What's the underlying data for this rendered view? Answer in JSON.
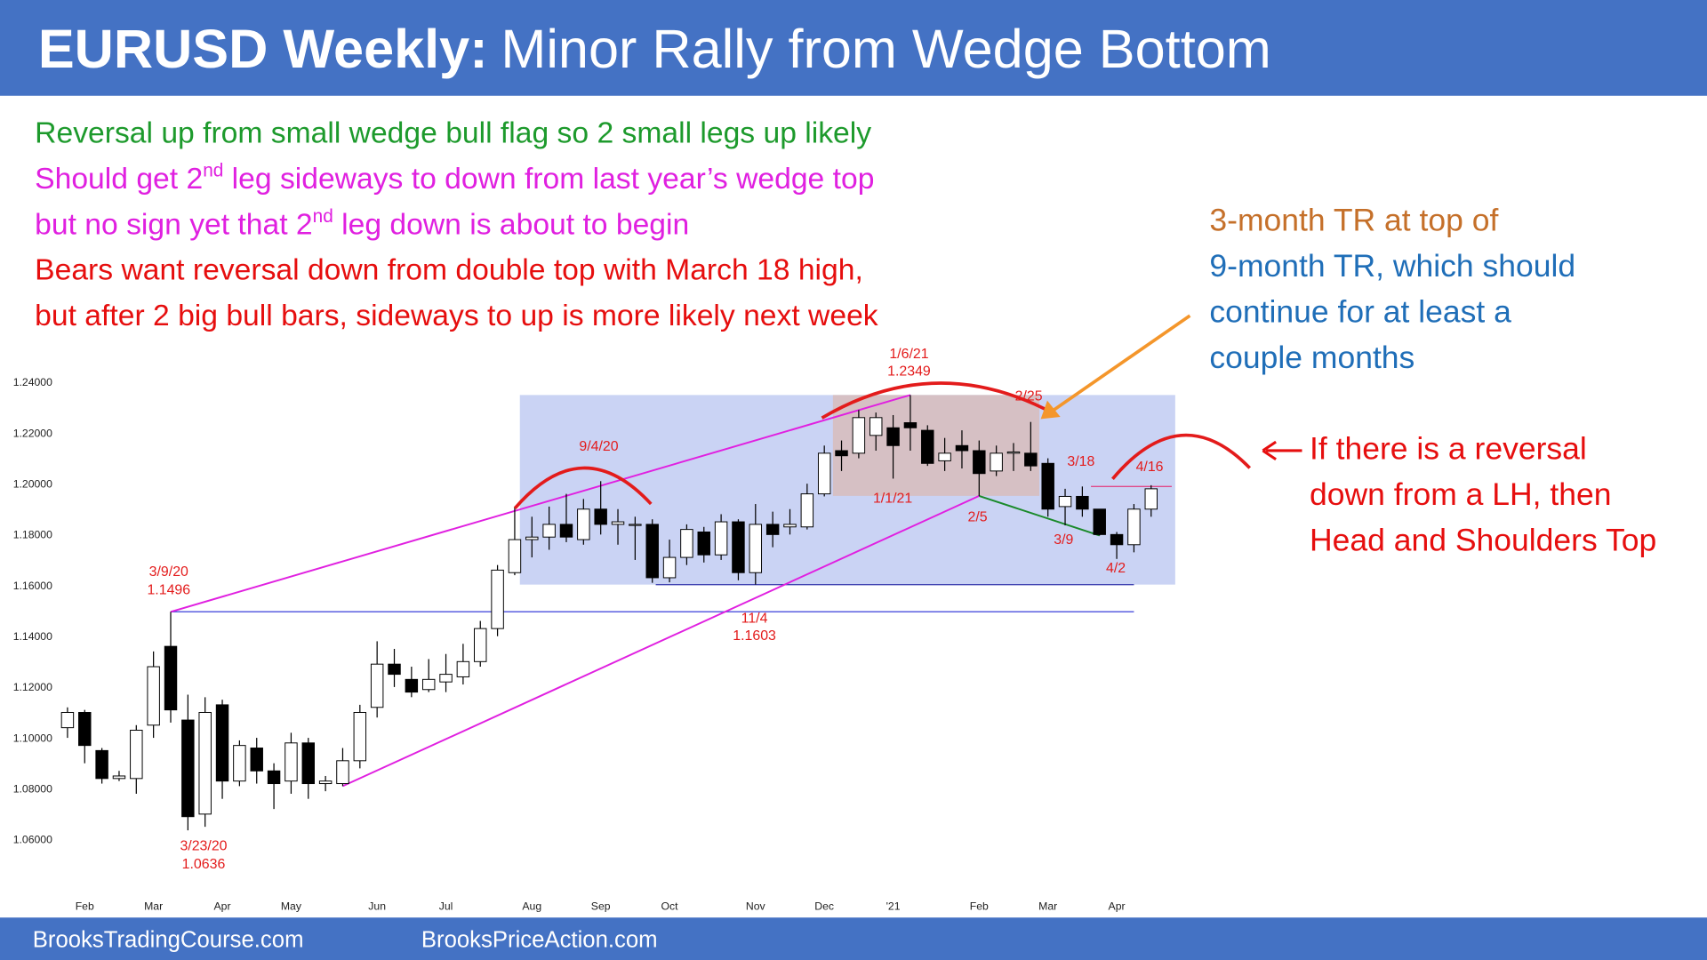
{
  "title": {
    "bold": "EURUSD Weekly:",
    "rest": "Minor Rally from Wedge Bottom"
  },
  "notes": [
    [
      "Reversal up from small wedge bull flag so 2 small legs up likely"
    ],
    [
      "Should get 2",
      "nd",
      " leg sideways to down from last year’s wedge top"
    ],
    [
      "but no sign yet that 2",
      "nd",
      " leg down is about to begin"
    ],
    [
      "Bears want reversal down from double top with March 18 high,"
    ],
    [
      "but after 2 big bull bars, sideways to up is more likely next week"
    ]
  ],
  "tr_note": [
    "3-month TR at top of",
    "9-month TR, which should",
    "continue for at least a",
    "couple months"
  ],
  "hs_note": [
    "If there is a reversal",
    "down from a LH, then",
    "Head and Shoulders Top"
  ],
  "footer": [
    "BrooksTradingCourse.com",
    "BrooksPriceAction.com"
  ],
  "chart_data": {
    "type": "candlestick",
    "up_color": "#ffffff",
    "down_color": "#000000",
    "ylim": [
      1.05,
      1.25
    ],
    "yticks": [
      {
        "value": 1.24,
        "label": "1.24000"
      },
      {
        "value": 1.22,
        "label": "1.22000"
      },
      {
        "value": 1.2,
        "label": "1.20000"
      },
      {
        "value": 1.18,
        "label": "1.18000"
      },
      {
        "value": 1.16,
        "label": "1.16000"
      },
      {
        "value": 1.14,
        "label": "1.14000"
      },
      {
        "value": 1.12,
        "label": "1.12000"
      },
      {
        "value": 1.1,
        "label": "1.10000"
      },
      {
        "value": 1.08,
        "label": "1.08000"
      },
      {
        "value": 1.06,
        "label": "1.06000"
      }
    ],
    "categories": [
      null,
      "Feb",
      null,
      null,
      null,
      "Mar",
      null,
      null,
      null,
      "Apr",
      null,
      null,
      null,
      "May",
      null,
      null,
      null,
      null,
      "Jun",
      null,
      null,
      null,
      "Jul",
      null,
      null,
      null,
      null,
      "Aug",
      null,
      null,
      null,
      "Sep",
      null,
      null,
      null,
      "Oct",
      null,
      null,
      null,
      null,
      "Nov",
      null,
      null,
      null,
      "Dec",
      null,
      null,
      null,
      "'21",
      null,
      null,
      null,
      null,
      "Feb",
      null,
      null,
      null,
      "Mar",
      null,
      null,
      null,
      "Apr",
      null,
      null
    ],
    "open": [
      1.104,
      1.11,
      1.095,
      1.084,
      1.084,
      1.105,
      1.136,
      1.107,
      1.07,
      1.113,
      1.083,
      1.096,
      1.087,
      1.083,
      1.098,
      1.082,
      1.082,
      1.091,
      1.112,
      1.129,
      1.123,
      1.119,
      1.122,
      1.124,
      1.13,
      1.143,
      1.165,
      1.178,
      1.179,
      1.184,
      1.178,
      1.19,
      1.184,
      1.184,
      1.184,
      1.163,
      1.171,
      1.181,
      1.172,
      1.185,
      1.165,
      1.184,
      1.183,
      1.183,
      1.196,
      1.213,
      1.212,
      1.219,
      1.222,
      1.224,
      1.221,
      1.209,
      1.215,
      1.213,
      1.205,
      1.212,
      1.212,
      1.208,
      1.191,
      1.195,
      1.19,
      1.18,
      1.176,
      1.19
    ],
    "high": [
      1.112,
      1.111,
      1.096,
      1.087,
      1.105,
      1.134,
      1.1496,
      1.117,
      1.116,
      1.115,
      1.099,
      1.1,
      1.09,
      1.102,
      1.1,
      1.085,
      1.096,
      1.113,
      1.138,
      1.135,
      1.128,
      1.131,
      1.133,
      1.137,
      1.146,
      1.168,
      1.191,
      1.187,
      1.191,
      1.196,
      1.194,
      1.201,
      1.19,
      1.187,
      1.186,
      1.178,
      1.184,
      1.183,
      1.188,
      1.186,
      1.192,
      1.189,
      1.19,
      1.2,
      1.215,
      1.217,
      1.229,
      1.228,
      1.227,
      1.2349,
      1.223,
      1.218,
      1.221,
      1.217,
      1.215,
      1.216,
      1.2243,
      1.21,
      1.198,
      1.1989,
      1.19,
      1.181,
      1.192,
      1.1994
    ],
    "low": [
      1.1,
      1.09,
      1.082,
      1.083,
      1.078,
      1.1,
      1.106,
      1.0636,
      1.065,
      1.076,
      1.081,
      1.082,
      1.072,
      1.078,
      1.076,
      1.079,
      1.081,
      1.088,
      1.108,
      1.12,
      1.116,
      1.118,
      1.118,
      1.121,
      1.128,
      1.14,
      1.164,
      1.171,
      1.174,
      1.177,
      1.176,
      1.18,
      1.176,
      1.17,
      1.161,
      1.1612,
      1.168,
      1.169,
      1.17,
      1.162,
      1.1603,
      1.175,
      1.18,
      1.182,
      1.195,
      1.205,
      1.21,
      1.213,
      1.202,
      1.213,
      1.207,
      1.205,
      1.206,
      1.1952,
      1.203,
      1.205,
      1.205,
      1.187,
      1.1836,
      1.187,
      1.1796,
      1.1704,
      1.173,
      1.187
    ],
    "close": [
      1.11,
      1.097,
      1.084,
      1.085,
      1.103,
      1.128,
      1.111,
      1.069,
      1.11,
      1.083,
      1.097,
      1.087,
      1.082,
      1.098,
      1.082,
      1.083,
      1.091,
      1.11,
      1.129,
      1.125,
      1.118,
      1.123,
      1.125,
      1.13,
      1.143,
      1.166,
      1.178,
      1.179,
      1.184,
      1.179,
      1.19,
      1.184,
      1.185,
      1.184,
      1.163,
      1.171,
      1.182,
      1.172,
      1.185,
      1.165,
      1.184,
      1.18,
      1.184,
      1.196,
      1.212,
      1.211,
      1.226,
      1.226,
      1.215,
      1.222,
      1.208,
      1.212,
      1.213,
      1.204,
      1.212,
      1.2125,
      1.207,
      1.19,
      1.195,
      1.19,
      1.18,
      1.176,
      1.19,
      1.198
    ],
    "annotations": [
      "3/9/20",
      "3/23/20",
      "9/4/20",
      "1/6/21",
      "2/25",
      "1/1/21",
      "3/18",
      "4/16",
      "2/5",
      "3/9",
      "4/2",
      "11/4"
    ]
  }
}
